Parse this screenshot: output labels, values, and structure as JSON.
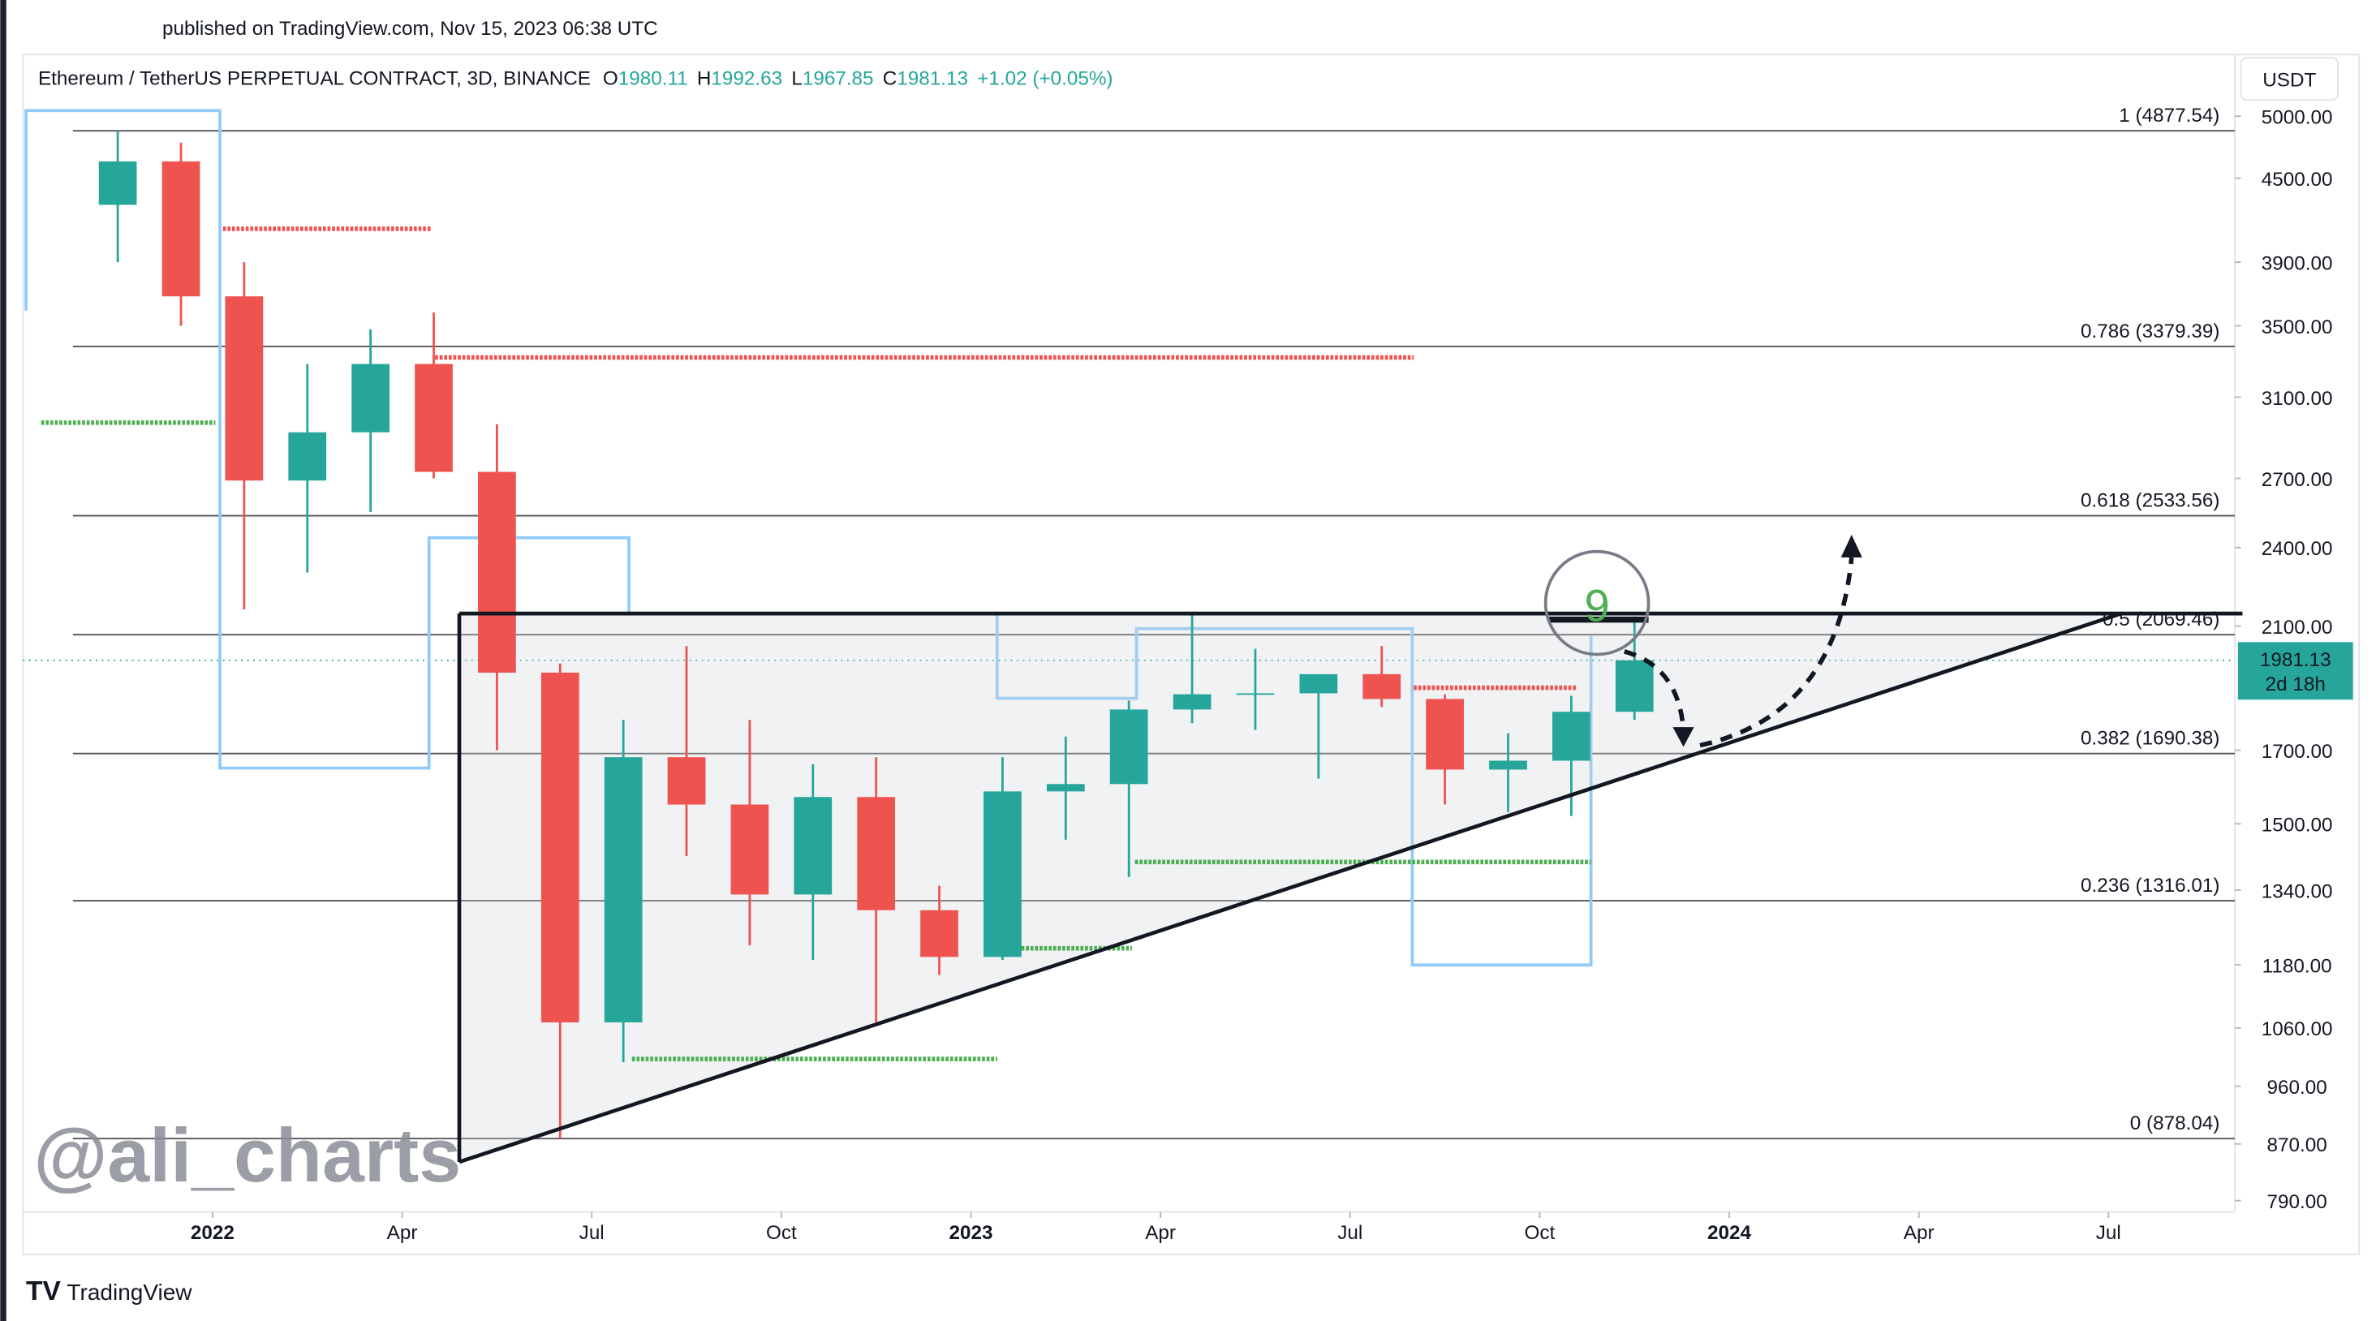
{
  "header": {
    "published": "published on TradingView.com, Nov 15, 2023 06:38 UTC",
    "brand": "TradingView"
  },
  "chart_data": {
    "type": "candlestick",
    "symbol": "Ethereum / TetherUS PERPETUAL CONTRACT, 3D, BINANCE",
    "quote": [
      {
        "label": "O",
        "value": 1980.11
      },
      {
        "label": "H",
        "value": 1992.63
      },
      {
        "label": "L",
        "value": 1967.85
      },
      {
        "label": "C",
        "value": 1981.13
      }
    ],
    "change": "+1.02 (+0.05%)",
    "currency": "USDT",
    "watermark": "@ali_charts",
    "last_price": 1981.13,
    "countdown": "2d 18h",
    "signal": 9,
    "log_scale": true,
    "up_color": "#26a69a",
    "down_color": "#ef5350",
    "x": [
      "2021-11",
      "2021-12",
      "2022-01",
      "2022-02",
      "2022-03",
      "2022-04",
      "2022-05",
      "2022-06",
      "2022-07",
      "2022-08",
      "2022-09",
      "2022-10",
      "2022-11",
      "2022-12",
      "2023-01",
      "2023-02",
      "2023-03",
      "2023-04",
      "2023-05",
      "2023-06",
      "2023-07",
      "2023-08",
      "2023-09",
      "2023-10",
      "2023-11"
    ],
    "open": [
      4300,
      4630,
      3680,
      2690,
      2920,
      3280,
      2730,
      1940,
      1070,
      1680,
      1550,
      1330,
      1570,
      1295,
      1196,
      1585,
      1605,
      1822,
      1870,
      1873,
      1935,
      1855,
      1645,
      1670,
      1815
    ],
    "high": [
      4877,
      4780,
      3900,
      3280,
      3480,
      3580,
      2960,
      1970,
      1790,
      2030,
      1790,
      1660,
      1680,
      1350,
      1680,
      1740,
      1850,
      2141,
      2020,
      1930,
      2030,
      1870,
      1750,
      1865,
      2135
    ],
    "low": [
      3900,
      3500,
      2160,
      2300,
      2550,
      2700,
      1700,
      878,
      1000,
      1420,
      1220,
      1190,
      1070,
      1160,
      1190,
      1460,
      1370,
      1780,
      1760,
      1620,
      1830,
      1550,
      1530,
      1520,
      1790
    ],
    "close": [
      4630,
      3680,
      2690,
      2920,
      3280,
      2730,
      1940,
      1070,
      1680,
      1550,
      1330,
      1570,
      1295,
      1196,
      1585,
      1605,
      1822,
      1870,
      1873,
      1935,
      1855,
      1645,
      1670,
      1815,
      1981.13
    ],
    "fib_levels": [
      {
        "value": 4877.54,
        "label": "1 (4877.54)"
      },
      {
        "value": 3379.39,
        "label": "0.786 (3379.39)"
      },
      {
        "value": 2533.56,
        "label": "0.618 (2533.56)"
      },
      {
        "value": 2069.46,
        "label": "0.5 (2069.46)"
      },
      {
        "value": 1690.38,
        "label": "0.382 (1690.38)"
      },
      {
        "value": 1316.01,
        "label": "0.236 (1316.01)"
      },
      {
        "value": 878.04,
        "label": "0 (878.04)"
      }
    ],
    "xlim": [
      "2021-10",
      "2024-09"
    ],
    "xticks": [
      {
        "value": "2022-01",
        "label": "2022"
      },
      {
        "value": "2022-04",
        "label": "Apr"
      },
      {
        "value": "2022-07",
        "label": "Jul"
      },
      {
        "value": "2022-10",
        "label": "Oct"
      },
      {
        "value": "2023-01",
        "label": "2023"
      },
      {
        "value": "2023-04",
        "label": "Apr"
      },
      {
        "value": "2023-07",
        "label": "Jul"
      },
      {
        "value": "2023-10",
        "label": "Oct"
      },
      {
        "value": "2024-01",
        "label": "2024"
      },
      {
        "value": "2024-04",
        "label": "Apr"
      },
      {
        "value": "2024-07",
        "label": "Jul"
      }
    ],
    "ylim": [
      775,
      5220
    ],
    "yticks": [
      {
        "value": 790,
        "label": "790.00"
      },
      {
        "value": 870,
        "label": "870.00"
      },
      {
        "value": 960,
        "label": "960.00"
      },
      {
        "value": 1060,
        "label": "1060.00"
      },
      {
        "value": 1180,
        "label": "1180.00"
      },
      {
        "value": 1340,
        "label": "1340.00"
      },
      {
        "value": 1500,
        "label": "1500.00"
      },
      {
        "value": 1700,
        "label": "1700.00"
      },
      {
        "value": 2100,
        "label": "2100.00"
      },
      {
        "value": 2400,
        "label": "2400.00"
      },
      {
        "value": 2700,
        "label": "2700.00"
      },
      {
        "value": 3100,
        "label": "3100.00"
      },
      {
        "value": 3500,
        "label": "3500.00"
      },
      {
        "value": 3900,
        "label": "3900.00"
      },
      {
        "value": 4500,
        "label": "4500.00"
      },
      {
        "value": 5000,
        "label": "5000.00"
      }
    ]
  }
}
